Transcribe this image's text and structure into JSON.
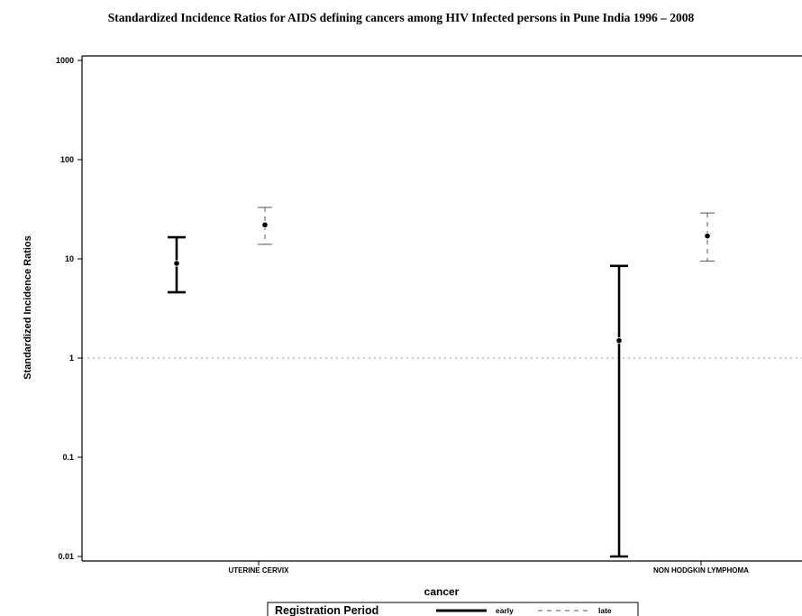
{
  "chart_data": {
    "type": "errorbar",
    "title": "Standardized Incidence Ratios for AIDS defining cancers among HIV Infected persons in Pune India 1996 – 2008",
    "xlabel": "cancer",
    "ylabel": "Standardized Incidence Ratios",
    "yscale": "log",
    "ylim": [
      0.01,
      1000
    ],
    "yticks": [
      {
        "value": 0.01,
        "label": "0.01"
      },
      {
        "value": 0.1,
        "label": "0.1"
      },
      {
        "value": 1,
        "label": "1"
      },
      {
        "value": 10,
        "label": "10"
      },
      {
        "value": 100,
        "label": "100"
      },
      {
        "value": 1000,
        "label": "1000"
      }
    ],
    "categories": [
      "UTERINE CERVIX",
      "NON HODGKIN LYMPHOMA"
    ],
    "reference_line": {
      "y": 1,
      "style": "dotted",
      "color": "#bbbbbb"
    },
    "series": [
      {
        "name": "early",
        "line_style": "solid",
        "points": [
          {
            "category": "UTERINE CERVIX",
            "estimate": 9,
            "lower": 4.6,
            "upper": 16.5
          },
          {
            "category": "NON HODGKIN LYMPHOMA",
            "estimate": 1.5,
            "lower": 0.01,
            "upper": 8.5
          }
        ]
      },
      {
        "name": "late",
        "line_style": "dashed",
        "points": [
          {
            "category": "UTERINE CERVIX",
            "estimate": 22,
            "lower": 14,
            "upper": 33
          },
          {
            "category": "NON HODGKIN LYMPHOMA",
            "estimate": 17,
            "lower": 9.5,
            "upper": 29
          }
        ]
      }
    ],
    "legend": {
      "title": "Registration Period",
      "position": "bottom",
      "entries": [
        "early",
        "late"
      ]
    }
  }
}
